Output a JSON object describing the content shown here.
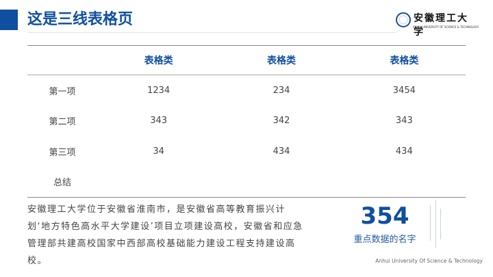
{
  "header": {
    "title": "这是三线表格页",
    "logo": {
      "name": "安徽理工大学",
      "english": "ANHUI UNIVERSITY OF SCIENCE & TECHNOLOGY"
    }
  },
  "table": {
    "headers": [
      "",
      "表格类",
      "表格类",
      "表格类"
    ],
    "rows": [
      [
        "第一项",
        "1234",
        "234",
        "3454"
      ],
      [
        "第二项",
        "343",
        "342",
        "343"
      ],
      [
        "第三项",
        "34",
        "434",
        "434"
      ],
      [
        "总结",
        "",
        "",
        ""
      ]
    ]
  },
  "paragraph": "安徽理工大学位于安徽省淮南市，是安徽省高等教育振兴计划‘地方特色高水平大学建设’项目立项建设高校，安徽省和应急管理部共建高校国家中西部高校基础能力建设工程支持建设高校。",
  "highlight": {
    "value": "354",
    "label": "重点数据的名字"
  },
  "footer": "Anhui University Of Science & Technology",
  "colors": {
    "accent": "#0f4fa0"
  }
}
